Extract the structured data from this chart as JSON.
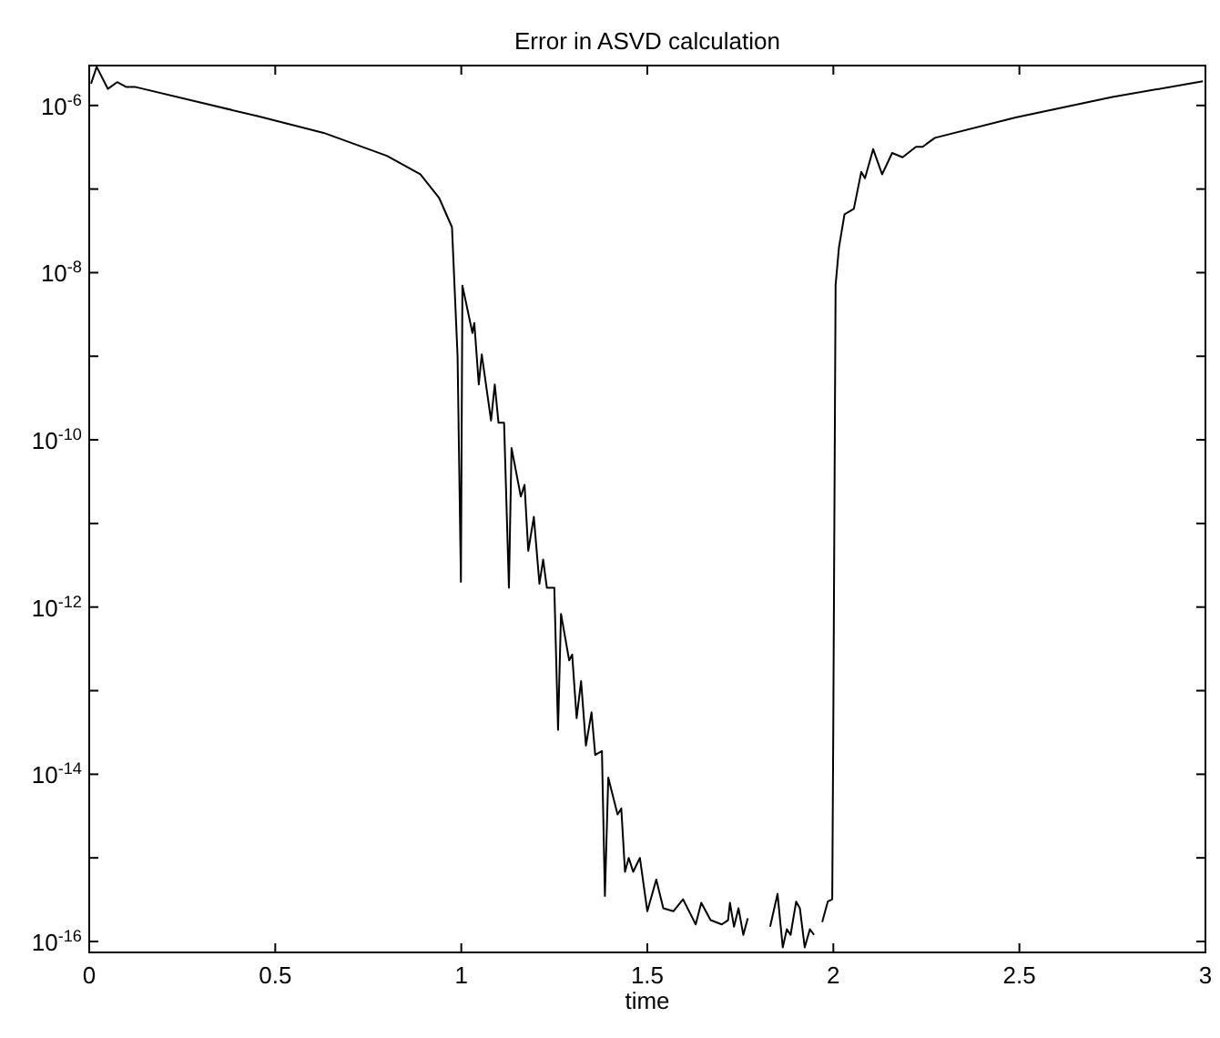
{
  "chart_data": {
    "type": "line",
    "title": "Error in ASVD calculation",
    "xlabel": "time",
    "log": true,
    "grid": false,
    "marker": "none",
    "line_style": "solid",
    "xlim": [
      0,
      3
    ],
    "ylim": [
      7.4e-17,
      3e-06
    ],
    "xticks": [
      0,
      0.5,
      1,
      1.5,
      2,
      2.5,
      3
    ],
    "yticks": [
      {
        "value": 1e-16,
        "label": "10$^{-16}$"
      },
      {
        "value": 1e-15,
        "label": null
      },
      {
        "value": 1e-14,
        "label": "10$^{-14}$"
      },
      {
        "value": 1e-13,
        "label": null
      },
      {
        "value": 1e-12,
        "label": "10$^{-12}$"
      },
      {
        "value": 1e-11,
        "label": null
      },
      {
        "value": 1e-10,
        "label": "10$^{-10}$"
      },
      {
        "value": 1e-09,
        "label": null
      },
      {
        "value": 1e-08,
        "label": "10$^{-8}$"
      },
      {
        "value": 1e-07,
        "label": null
      },
      {
        "value": 1e-06,
        "label": "10$^{-6}$"
      }
    ],
    "x": [
      0.005,
      0.02,
      0.05,
      0.075,
      0.1,
      0.125,
      0.455,
      0.63,
      0.8,
      0.89,
      0.94,
      0.975,
      0.99,
      0.999,
      1.003,
      1.03,
      1.035,
      1.047,
      1.055,
      1.08,
      1.09,
      1.1,
      1.115,
      1.128,
      1.135,
      1.16,
      1.17,
      1.18,
      1.195,
      1.21,
      1.22,
      1.23,
      1.25,
      1.26,
      1.268,
      1.29,
      1.298,
      1.31,
      1.322,
      1.335,
      1.35,
      1.36,
      1.378,
      1.386,
      1.395,
      1.42,
      1.43,
      1.44,
      1.45,
      1.462,
      1.48,
      1.5,
      1.524,
      1.543,
      1.57,
      1.596,
      1.63,
      1.645,
      1.67,
      1.7,
      1.717,
      1.722,
      1.733,
      1.745,
      1.758,
      1.77,
      1.79,
      1.83,
      1.85,
      1.864,
      1.875,
      1.885,
      1.9,
      1.91,
      1.923,
      1.937,
      1.948,
      1.96,
      1.97,
      1.985,
      1.997,
      2.0,
      2.006,
      2.015,
      2.03,
      2.055,
      2.075,
      2.085,
      2.107,
      2.131,
      2.158,
      2.186,
      2.222,
      2.24,
      2.273,
      2.49,
      2.75,
      2.993
    ],
    "series": [
      {
        "color": "#000000",
        "values": [
          1.82e-06,
          2.9e-06,
          1.58e-06,
          1.9e-06,
          1.66e-06,
          1.66e-06,
          7.4e-07,
          4.7e-07,
          2.5e-07,
          1.5e-07,
          7.9e-08,
          3.5e-08,
          1e-09,
          2e-12,
          7e-09,
          1.9e-09,
          2.5e-09,
          4.6e-10,
          1.05e-09,
          1.7e-10,
          4.6e-10,
          1.6e-10,
          1.6e-10,
          1.7e-12,
          8e-11,
          2.1e-11,
          2.9e-11,
          4.7e-12,
          1.2e-11,
          1.9e-12,
          3.7e-12,
          1.7e-12,
          1.7e-12,
          3.4e-14,
          8.3e-13,
          2.3e-13,
          2.7e-13,
          4.7e-14,
          1.3e-13,
          2.2e-14,
          5.5e-14,
          1.7e-14,
          1.9e-14,
          3.5e-16,
          9.1e-15,
          3.3e-15,
          3.9e-15,
          6.8e-16,
          1e-15,
          6.8e-16,
          1e-15,
          2.3e-16,
          5.5e-16,
          2.5e-16,
          2.3e-16,
          3.2e-16,
          1.6e-16,
          2.9e-16,
          1.8e-16,
          1.6e-16,
          1.8e-16,
          2.9e-16,
          1.5e-16,
          2.5e-16,
          1.2e-16,
          1.9e-16,
          null,
          1.5e-16,
          3.7e-16,
          8.5e-17,
          1.4e-16,
          1.2e-16,
          3e-16,
          2.5e-16,
          8.5e-17,
          1.4e-16,
          1.2e-16,
          null,
          1.7e-16,
          3e-16,
          3.2e-16,
          5.2e-14,
          7.1e-09,
          2e-08,
          5e-08,
          5.8e-08,
          1.6e-07,
          1.35e-07,
          3e-07,
          1.5e-07,
          2.7e-07,
          2.4e-07,
          3.2e-07,
          3.2e-07,
          4.1e-07,
          7.2e-07,
          1.26e-06,
          1.95e-06
        ]
      }
    ]
  }
}
